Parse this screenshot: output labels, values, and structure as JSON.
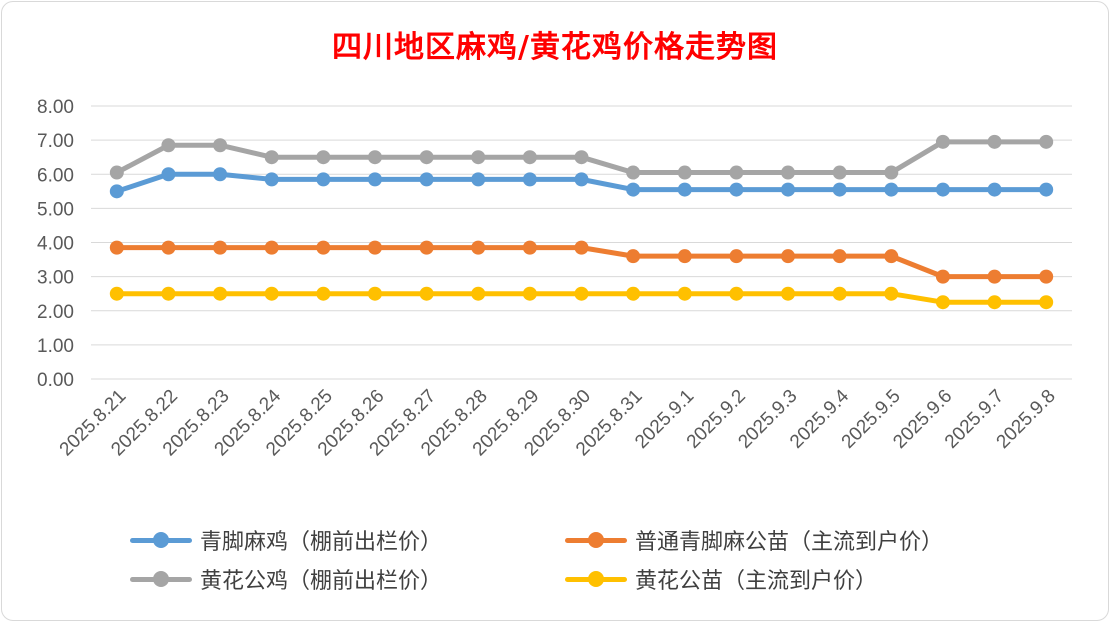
{
  "chart_data": {
    "type": "line",
    "title": "四川地区麻鸡/黄花鸡价格走势图",
    "categories": [
      "2025.8.21",
      "2025.8.22",
      "2025.8.23",
      "2025.8.24",
      "2025.8.25",
      "2025.8.26",
      "2025.8.27",
      "2025.8.28",
      "2025.8.29",
      "2025.8.30",
      "2025.8.31",
      "2025.9.1",
      "2025.9.2",
      "2025.9.3",
      "2025.9.4",
      "2025.9.5",
      "2025.9.6",
      "2025.9.7",
      "2025.9.8"
    ],
    "ylim": [
      0,
      8
    ],
    "yticks": [
      "0.00",
      "1.00",
      "2.00",
      "3.00",
      "4.00",
      "5.00",
      "6.00",
      "7.00",
      "8.00"
    ],
    "grid": true,
    "legend_position": "bottom",
    "series": [
      {
        "name": "青脚麻鸡（棚前出栏价）",
        "color": "#5b9bd5",
        "values": [
          5.5,
          6.0,
          6.0,
          5.85,
          5.85,
          5.85,
          5.85,
          5.85,
          5.85,
          5.85,
          5.55,
          5.55,
          5.55,
          5.55,
          5.55,
          5.55,
          5.55,
          5.55,
          5.55
        ]
      },
      {
        "name": "普通青脚麻公苗（主流到户价）",
        "color": "#ed7d31",
        "values": [
          3.85,
          3.85,
          3.85,
          3.85,
          3.85,
          3.85,
          3.85,
          3.85,
          3.85,
          3.85,
          3.6,
          3.6,
          3.6,
          3.6,
          3.6,
          3.6,
          3.0,
          3.0,
          3.0
        ]
      },
      {
        "name": "黄花公鸡（棚前出栏价）",
        "color": "#a5a5a5",
        "values": [
          6.05,
          6.85,
          6.85,
          6.5,
          6.5,
          6.5,
          6.5,
          6.5,
          6.5,
          6.5,
          6.05,
          6.05,
          6.05,
          6.05,
          6.05,
          6.05,
          6.95,
          6.95,
          6.95
        ]
      },
      {
        "name": "黄花公苗（主流到户价）",
        "color": "#ffc000",
        "values": [
          2.5,
          2.5,
          2.5,
          2.5,
          2.5,
          2.5,
          2.5,
          2.5,
          2.5,
          2.5,
          2.5,
          2.5,
          2.5,
          2.5,
          2.5,
          2.5,
          2.25,
          2.25,
          2.25
        ]
      }
    ]
  }
}
